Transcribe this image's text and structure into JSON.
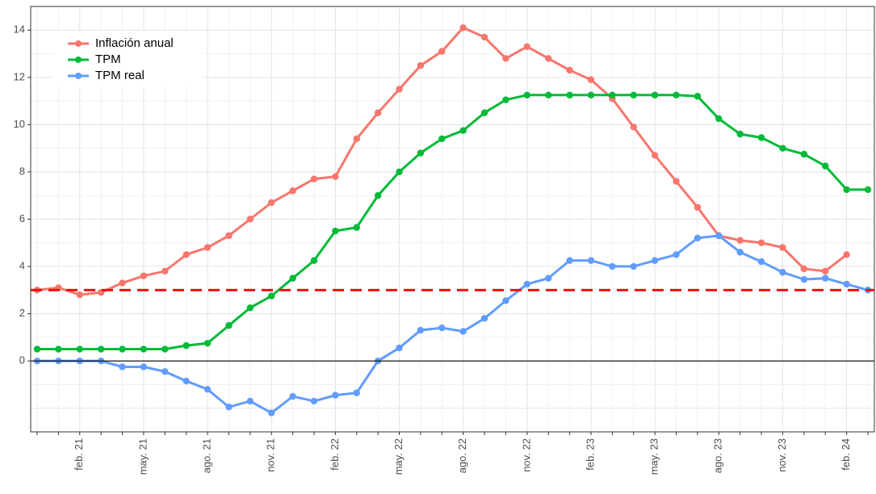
{
  "chart_data": {
    "type": "line",
    "categories": [
      null,
      null,
      "feb. 21",
      null,
      null,
      "may. 21",
      null,
      null,
      "ago. 21",
      null,
      null,
      "nov. 21",
      null,
      null,
      "feb. 22",
      null,
      null,
      "may. 22",
      null,
      null,
      "ago. 22",
      null,
      null,
      "nov. 22",
      null,
      null,
      "feb. 23",
      null,
      null,
      "may. 23",
      null,
      null,
      "ago. 23",
      null,
      null,
      "nov. 23",
      null,
      null,
      "feb. 24",
      null
    ],
    "series": [
      {
        "name": "Inflación anual",
        "color": "#f8766d",
        "values": [
          3.0,
          3.1,
          2.8,
          2.9,
          3.3,
          3.6,
          3.8,
          4.5,
          4.8,
          5.3,
          6.0,
          6.7,
          7.2,
          7.7,
          7.8,
          9.4,
          10.5,
          11.5,
          12.5,
          13.1,
          14.1,
          13.7,
          12.8,
          13.3,
          12.8,
          12.3,
          11.9,
          11.1,
          9.9,
          8.7,
          7.6,
          6.5,
          5.3,
          5.1,
          5.0,
          4.8,
          3.9,
          3.8,
          4.5,
          null
        ]
      },
      {
        "name": "TPM",
        "color": "#00ba38",
        "values": [
          0.5,
          0.5,
          0.5,
          0.5,
          0.5,
          0.5,
          0.5,
          0.65,
          0.75,
          1.5,
          2.25,
          2.75,
          3.5,
          4.25,
          5.5,
          5.65,
          7.0,
          8.0,
          8.8,
          9.4,
          9.75,
          10.5,
          11.05,
          11.25,
          11.25,
          11.25,
          11.25,
          11.25,
          11.25,
          11.25,
          11.25,
          11.2,
          10.25,
          9.6,
          9.45,
          9.0,
          8.75,
          8.25,
          7.25,
          7.25
        ]
      },
      {
        "name": "TPM real",
        "color": "#619cff",
        "values": [
          0,
          0,
          0,
          0,
          -0.25,
          -0.25,
          -0.45,
          -0.85,
          -1.2,
          -1.95,
          -1.7,
          -2.2,
          -1.5,
          -1.7,
          -1.45,
          -1.35,
          0.0,
          0.55,
          1.3,
          1.4,
          1.25,
          1.8,
          2.55,
          3.25,
          3.5,
          4.25,
          4.25,
          4.0,
          4.0,
          4.25,
          4.5,
          5.2,
          5.3,
          4.6,
          4.2,
          3.75,
          3.45,
          3.5,
          3.25,
          3.0
        ]
      }
    ],
    "reference_lines": [
      {
        "value": 3,
        "color": "#ee1111",
        "style": "dashed"
      },
      {
        "value": 0,
        "color": "#000000",
        "style": "solid"
      }
    ],
    "ylim": [
      -3,
      15
    ],
    "yticks": [
      0,
      2,
      4,
      6,
      8,
      10,
      12,
      14
    ],
    "grid": true,
    "legend": "top-left"
  }
}
